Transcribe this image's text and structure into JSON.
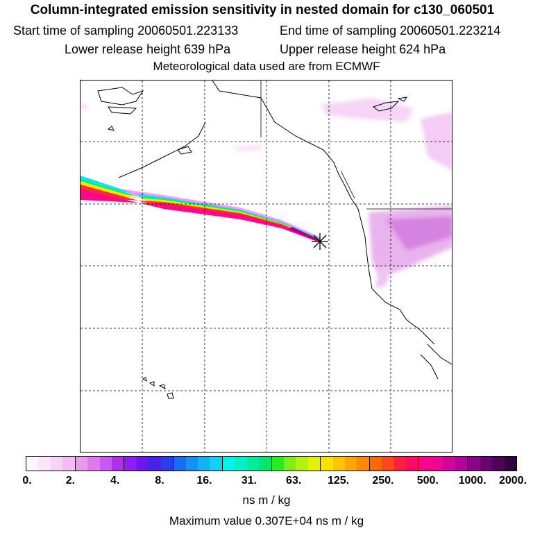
{
  "header": {
    "title": "Column-integrated emission sensitivity in nested domain for c130_060501",
    "start_label": "Start time of sampling 20060501.223133",
    "end_label": "End time of sampling 20060501.223214",
    "lower_label": "Lower release height  639 hPa",
    "upper_label": "Upper release height  624 hPa",
    "met_label": "Meteorological data used are from ECMWF"
  },
  "map": {
    "plume_color_core": "#7a0060",
    "land_signal_color": "#e89ae8",
    "receptor_marker": "release point"
  },
  "legend": {
    "ticks": [
      "0.",
      "2.",
      "4.",
      "8.",
      "16.",
      "31.",
      "63.",
      "125.",
      "250.",
      "500.",
      "1000.",
      "2000."
    ],
    "segments": [
      [
        "#fff6ff",
        "#fce4fc",
        "#f9d2f9",
        "#f3bcf3"
      ],
      [
        "#e99ae9",
        "#dc79ef",
        "#c956f5",
        "#b12ef7"
      ],
      [
        "#8d1cf7",
        "#6a18f2",
        "#4622ec",
        "#2c3af0"
      ],
      [
        "#1a6cf5",
        "#1590f7",
        "#12b2f7",
        "#10d0f6"
      ],
      [
        "#00f5ea",
        "#00f1c6",
        "#00ec9c",
        "#00e86c"
      ],
      [
        "#2aea20",
        "#7eee14",
        "#b5f00e",
        "#e2f20a"
      ],
      [
        "#ffe100",
        "#ffc500",
        "#ffa500",
        "#ff8a00"
      ],
      [
        "#ff6a00",
        "#ff4818",
        "#ff2040",
        "#ff0866"
      ],
      [
        "#ff0588",
        "#f00396",
        "#d4049a",
        "#b0049a"
      ],
      [
        "#8c0486",
        "#6a0470",
        "#4c0356",
        "#32023c"
      ]
    ],
    "units": "ns m / kg",
    "max_value": "Maximum value  0.307E+04 ns m / kg"
  }
}
